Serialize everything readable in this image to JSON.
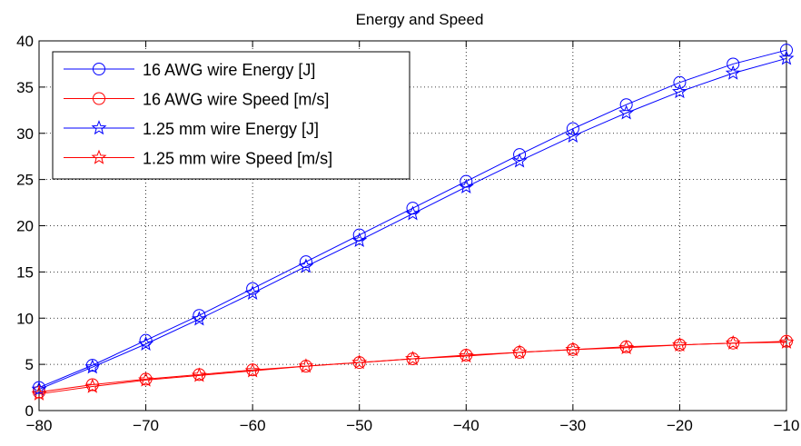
{
  "chart_data": {
    "type": "line",
    "title": "Energy and Speed",
    "xlabel": "",
    "ylabel": "",
    "xlim": [
      -80,
      -10
    ],
    "ylim": [
      0,
      40
    ],
    "xticks": [
      -80,
      -70,
      -60,
      -50,
      -40,
      -30,
      -20,
      -10
    ],
    "yticks": [
      0,
      5,
      10,
      15,
      20,
      25,
      30,
      35,
      40
    ],
    "xtick_labels": [
      "−80",
      "−70",
      "−60",
      "−50",
      "−40",
      "−30",
      "−20",
      "−10"
    ],
    "ytick_labels": [
      "0",
      "5",
      "10",
      "15",
      "20",
      "25",
      "30",
      "35",
      "40"
    ],
    "grid": true,
    "legend_position": "top-left",
    "x": [
      -80,
      -75,
      -70,
      -65,
      -60,
      -55,
      -50,
      -45,
      -40,
      -35,
      -30,
      -25,
      -20,
      -15,
      -10
    ],
    "series": [
      {
        "name": "16 AWG wire Energy [J]",
        "color": "#0000ff",
        "marker": "circle",
        "values": [
          2.5,
          4.9,
          7.6,
          10.3,
          13.2,
          16.1,
          19.0,
          21.9,
          24.8,
          27.7,
          30.5,
          33.1,
          35.5,
          37.5,
          39.0
        ]
      },
      {
        "name": "16 AWG wire Speed [m/s]",
        "color": "#ff0000",
        "marker": "circle",
        "values": [
          2.0,
          2.8,
          3.4,
          3.9,
          4.4,
          4.8,
          5.2,
          5.6,
          6.0,
          6.3,
          6.6,
          6.9,
          7.1,
          7.3,
          7.5
        ]
      },
      {
        "name": "1.25 mm wire Energy [J]",
        "color": "#0000ff",
        "marker": "star",
        "values": [
          2.3,
          4.7,
          7.2,
          9.9,
          12.7,
          15.6,
          18.4,
          21.3,
          24.2,
          27.0,
          29.7,
          32.2,
          34.5,
          36.5,
          38.1
        ]
      },
      {
        "name": "1.25 mm wire Speed [m/s]",
        "color": "#ff0000",
        "marker": "star",
        "values": [
          1.8,
          2.6,
          3.3,
          3.8,
          4.3,
          4.8,
          5.2,
          5.6,
          5.9,
          6.3,
          6.6,
          6.8,
          7.1,
          7.3,
          7.4
        ]
      }
    ]
  }
}
